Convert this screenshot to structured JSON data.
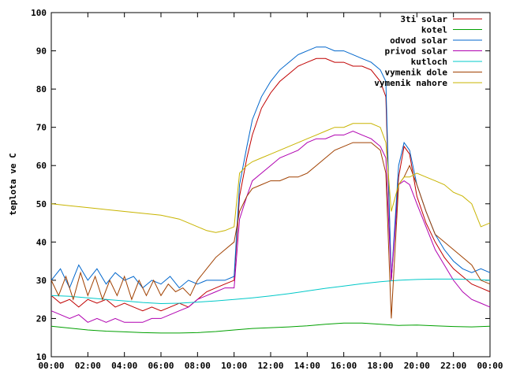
{
  "chart_data": {
    "type": "line",
    "title": "",
    "xlabel": "",
    "ylabel": "teplota ve C",
    "xlim": [
      0,
      24
    ],
    "ylim": [
      10,
      100
    ],
    "x_ticks": [
      0,
      2,
      4,
      6,
      8,
      10,
      12,
      14,
      16,
      18,
      20,
      22,
      24
    ],
    "x_tick_labels": [
      "00:00",
      "02:00",
      "04:00",
      "06:00",
      "08:00",
      "10:00",
      "12:00",
      "14:00",
      "16:00",
      "18:00",
      "20:00",
      "22:00",
      "00:00"
    ],
    "y_ticks": [
      10,
      20,
      30,
      40,
      50,
      60,
      70,
      80,
      90,
      100
    ],
    "y_tick_labels": [
      "10",
      "20",
      "30",
      "40",
      "50",
      "60",
      "70",
      "80",
      "90",
      "100"
    ],
    "grid": false,
    "legend_position": "top-right",
    "series": [
      {
        "name": "3ti solar",
        "color": "#c00000",
        "x": [
          0,
          0.5,
          1,
          1.5,
          2,
          2.5,
          3,
          3.5,
          4,
          4.5,
          5,
          5.5,
          6,
          6.5,
          7,
          7.5,
          8,
          8.5,
          9,
          9.5,
          10,
          10.3,
          10.7,
          11,
          11.5,
          12,
          12.5,
          13,
          13.5,
          14,
          14.5,
          15,
          15.5,
          16,
          16.5,
          17,
          17.5,
          18,
          18.3,
          18.6,
          19,
          19.3,
          19.6,
          20,
          20.5,
          21,
          21.5,
          22,
          22.5,
          23,
          23.5,
          24
        ],
        "y": [
          26,
          24,
          25,
          23,
          25,
          24,
          25,
          23,
          24,
          23,
          22,
          23,
          22,
          23,
          24,
          23,
          25,
          27,
          28,
          29,
          30,
          52,
          62,
          68,
          75,
          79,
          82,
          84,
          86,
          87,
          88,
          88,
          87,
          87,
          86,
          86,
          85,
          82,
          78,
          30,
          57,
          65,
          63,
          52,
          45,
          40,
          36,
          33,
          31,
          29,
          28,
          27
        ]
      },
      {
        "name": "kotel",
        "color": "#00a000",
        "x": [
          0,
          1,
          2,
          3,
          4,
          5,
          6,
          7,
          8,
          9,
          10,
          11,
          12,
          13,
          14,
          15,
          16,
          17,
          18,
          19,
          20,
          21,
          22,
          23,
          24
        ],
        "y": [
          18,
          17.5,
          17,
          16.7,
          16.5,
          16.3,
          16.2,
          16.2,
          16.3,
          16.6,
          17,
          17.4,
          17.6,
          17.8,
          18.1,
          18.5,
          18.8,
          18.8,
          18.5,
          18.2,
          18.3,
          18.1,
          17.9,
          17.8,
          18
        ]
      },
      {
        "name": "odvod solar",
        "color": "#0066cc",
        "x": [
          0,
          0.5,
          1,
          1.5,
          2,
          2.5,
          3,
          3.5,
          4,
          4.5,
          5,
          5.5,
          6,
          6.5,
          7,
          7.5,
          8,
          8.5,
          9,
          9.5,
          10,
          10.3,
          10.7,
          11,
          11.5,
          12,
          12.5,
          13,
          13.5,
          14,
          14.5,
          15,
          15.5,
          16,
          16.5,
          17,
          17.5,
          18,
          18.3,
          18.6,
          19,
          19.3,
          19.6,
          20,
          20.5,
          21,
          21.5,
          22,
          22.5,
          23,
          23.5,
          24
        ],
        "y": [
          30,
          33,
          28,
          34,
          30,
          33,
          29,
          32,
          30,
          31,
          28,
          30,
          29,
          31,
          28,
          30,
          29,
          30,
          30,
          30,
          31,
          55,
          65,
          72,
          78,
          82,
          85,
          87,
          89,
          90,
          91,
          91,
          90,
          90,
          89,
          88,
          87,
          85,
          82,
          30,
          60,
          66,
          64,
          55,
          48,
          42,
          38,
          35,
          33,
          32,
          33,
          32
        ]
      },
      {
        "name": "privod solar",
        "color": "#b000b0",
        "x": [
          0,
          0.5,
          1,
          1.5,
          2,
          2.5,
          3,
          3.5,
          4,
          4.5,
          5,
          5.5,
          6,
          6.5,
          7,
          7.5,
          8,
          8.5,
          9,
          9.5,
          10,
          10.3,
          10.7,
          11,
          11.5,
          12,
          12.5,
          13,
          13.5,
          14,
          14.5,
          15,
          15.5,
          16,
          16.5,
          17,
          17.5,
          18,
          18.3,
          18.6,
          19,
          19.3,
          19.6,
          20,
          20.5,
          21,
          21.5,
          22,
          22.5,
          23,
          23.5,
          24
        ],
        "y": [
          22,
          21,
          20,
          21,
          19,
          20,
          19,
          20,
          19,
          19,
          19,
          20,
          20,
          21,
          22,
          23,
          25,
          26,
          27,
          28,
          28,
          46,
          52,
          56,
          58,
          60,
          62,
          63,
          64,
          66,
          67,
          67,
          68,
          68,
          69,
          68,
          67,
          65,
          62,
          30,
          55,
          56,
          55,
          50,
          44,
          38,
          34,
          30,
          27,
          25,
          24,
          23
        ]
      },
      {
        "name": "kutloch",
        "color": "#00c8c8",
        "x": [
          0,
          1,
          2,
          3,
          4,
          5,
          6,
          7,
          8,
          9,
          10,
          11,
          12,
          13,
          14,
          15,
          16,
          17,
          18,
          19,
          20,
          21,
          22,
          23,
          24
        ],
        "y": [
          26,
          25.8,
          25.4,
          25,
          24.6,
          24.2,
          23.9,
          24,
          24.3,
          24.6,
          25,
          25.4,
          25.9,
          26.5,
          27.2,
          27.9,
          28.5,
          29.1,
          29.6,
          30,
          30.2,
          30.3,
          30.3,
          30.2,
          30
        ]
      },
      {
        "name": "vymenik dole",
        "color": "#a04000",
        "x": [
          0,
          0.4,
          0.8,
          1.2,
          1.6,
          2,
          2.4,
          2.8,
          3.2,
          3.6,
          4,
          4.4,
          4.8,
          5.2,
          5.6,
          6,
          6.4,
          6.8,
          7.2,
          7.6,
          8,
          8.5,
          9,
          9.5,
          10,
          10.3,
          10.7,
          11,
          11.5,
          12,
          12.5,
          13,
          13.5,
          14,
          14.5,
          15,
          15.5,
          16,
          16.5,
          17,
          17.5,
          18,
          18.3,
          18.6,
          19,
          19.3,
          19.6,
          20,
          20.5,
          21,
          21.5,
          22,
          22.5,
          23,
          23.5,
          24
        ],
        "y": [
          30,
          26,
          31,
          25,
          32,
          26,
          31,
          25,
          30,
          26,
          31,
          25,
          30,
          26,
          30,
          26,
          29,
          27,
          28,
          26,
          30,
          33,
          36,
          38,
          40,
          48,
          52,
          54,
          55,
          56,
          56,
          57,
          57,
          58,
          60,
          62,
          64,
          65,
          66,
          66,
          66,
          64,
          58,
          20,
          55,
          57,
          60,
          55,
          48,
          42,
          40,
          38,
          36,
          34,
          30,
          29
        ]
      },
      {
        "name": "vymenik nahore",
        "color": "#c8b400",
        "x": [
          0,
          1,
          2,
          3,
          4,
          5,
          6,
          7,
          7.5,
          8,
          8.5,
          9,
          9.5,
          10,
          10.3,
          10.7,
          11,
          11.5,
          12,
          12.5,
          13,
          13.5,
          14,
          14.5,
          15,
          15.5,
          16,
          16.5,
          17,
          17.5,
          18,
          18.3,
          18.6,
          19,
          19.3,
          19.6,
          20,
          20.5,
          21,
          21.5,
          22,
          22.5,
          23,
          23.5,
          24
        ],
        "y": [
          50,
          49.5,
          49,
          48.5,
          48,
          47.5,
          47,
          46,
          45,
          44,
          43,
          42.5,
          43,
          44,
          58,
          60,
          61,
          62,
          63,
          64,
          65,
          66,
          67,
          68,
          69,
          70,
          70,
          71,
          71,
          71,
          70,
          66,
          48,
          55,
          57,
          57,
          58,
          57,
          56,
          55,
          53,
          52,
          50,
          44,
          45
        ]
      }
    ]
  }
}
